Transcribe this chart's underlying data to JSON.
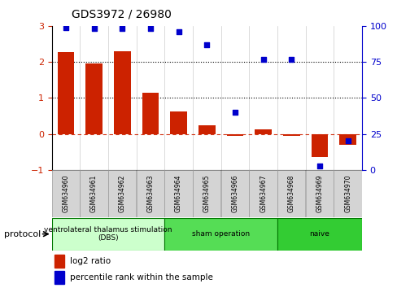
{
  "title": "GDS3972 / 26980",
  "samples": [
    "GSM634960",
    "GSM634961",
    "GSM634962",
    "GSM634963",
    "GSM634964",
    "GSM634965",
    "GSM634966",
    "GSM634967",
    "GSM634968",
    "GSM634969",
    "GSM634970"
  ],
  "log2_ratio": [
    2.27,
    1.95,
    2.3,
    1.15,
    0.62,
    0.25,
    -0.05,
    0.13,
    -0.05,
    -0.65,
    -0.3
  ],
  "percentile_rank": [
    99,
    98,
    98,
    98,
    96,
    87,
    40,
    77,
    77,
    3,
    20
  ],
  "bar_color": "#cc2200",
  "dot_color": "#0000cc",
  "ylim_left": [
    -1,
    3
  ],
  "ylim_right": [
    0,
    100
  ],
  "yticks_left": [
    -1,
    0,
    1,
    2,
    3
  ],
  "yticks_right": [
    0,
    25,
    50,
    75,
    100
  ],
  "hlines_dotted": [
    1,
    2
  ],
  "hline_dashed_val": 0,
  "hline_dashed_color": "#cc2200",
  "groups": [
    {
      "label": "ventrolateral thalamus stimulation\n(DBS)",
      "start": 0,
      "end": 3,
      "color": "#ccffcc"
    },
    {
      "label": "sham operation",
      "start": 4,
      "end": 7,
      "color": "#55dd55"
    },
    {
      "label": "naive",
      "start": 8,
      "end": 10,
      "color": "#33cc33"
    }
  ],
  "legend_log2": "log2 ratio",
  "legend_pct": "percentile rank within the sample",
  "protocol_label": "protocol"
}
